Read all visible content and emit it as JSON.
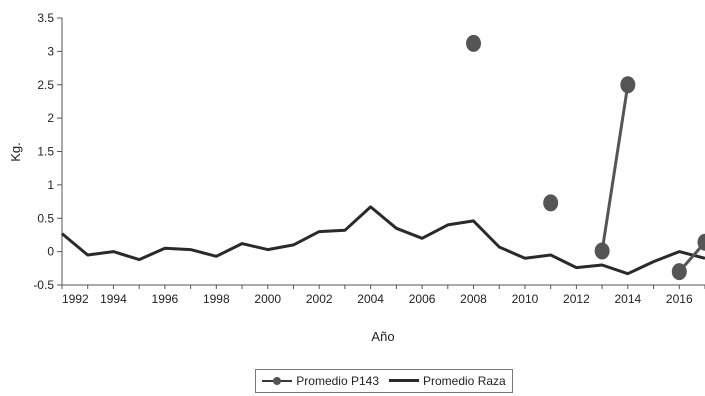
{
  "chart_data": {
    "type": "line",
    "xlabel": "Año",
    "ylabel": "Kg.",
    "xlim": [
      1992,
      2017
    ],
    "ylim": [
      -0.5,
      3.5
    ],
    "x_ticks": [
      "1992",
      "1994",
      "1996",
      "1998",
      "2000",
      "2002",
      "2004",
      "2006",
      "2008",
      "2010",
      "2012",
      "2014",
      "2016"
    ],
    "y_ticks": [
      "3.5",
      "3",
      "2.5",
      "2",
      "1.5",
      "1",
      "0.5",
      "0",
      "-0.5"
    ],
    "grid": false,
    "legend_position": "bottom",
    "series": [
      {
        "name": "Promedio P143",
        "style": "line-with-markers",
        "color": "#555555",
        "points": [
          {
            "x": 2008,
            "y": 3.12
          },
          {
            "x": 2011,
            "y": 0.73
          },
          {
            "x": 2013,
            "y": 0.01
          },
          {
            "x": 2014,
            "y": 2.5
          },
          {
            "x": 2016,
            "y": -0.3
          },
          {
            "x": 2017,
            "y": 0.14
          }
        ],
        "segments": [
          [
            2,
            3
          ],
          [
            4,
            5
          ]
        ]
      },
      {
        "name": "Promedio Raza",
        "style": "line",
        "color": "#2a2a2a",
        "points": [
          {
            "x": 1992,
            "y": 0.27
          },
          {
            "x": 1993,
            "y": -0.05
          },
          {
            "x": 1994,
            "y": 0.0
          },
          {
            "x": 1995,
            "y": -0.12
          },
          {
            "x": 1996,
            "y": 0.05
          },
          {
            "x": 1997,
            "y": 0.03
          },
          {
            "x": 1998,
            "y": -0.07
          },
          {
            "x": 1999,
            "y": 0.12
          },
          {
            "x": 2000,
            "y": 0.03
          },
          {
            "x": 2001,
            "y": 0.1
          },
          {
            "x": 2002,
            "y": 0.3
          },
          {
            "x": 2003,
            "y": 0.32
          },
          {
            "x": 2004,
            "y": 0.67
          },
          {
            "x": 2005,
            "y": 0.35
          },
          {
            "x": 2006,
            "y": 0.2
          },
          {
            "x": 2007,
            "y": 0.4
          },
          {
            "x": 2008,
            "y": 0.46
          },
          {
            "x": 2009,
            "y": 0.07
          },
          {
            "x": 2010,
            "y": -0.1
          },
          {
            "x": 2011,
            "y": -0.05
          },
          {
            "x": 2012,
            "y": -0.24
          },
          {
            "x": 2013,
            "y": -0.2
          },
          {
            "x": 2014,
            "y": -0.33
          },
          {
            "x": 2015,
            "y": -0.15
          },
          {
            "x": 2016,
            "y": 0.0
          },
          {
            "x": 2017,
            "y": -0.1
          }
        ]
      }
    ]
  },
  "legend": {
    "items": [
      {
        "label": "Promedio P143"
      },
      {
        "label": "Promedio Raza"
      }
    ]
  }
}
